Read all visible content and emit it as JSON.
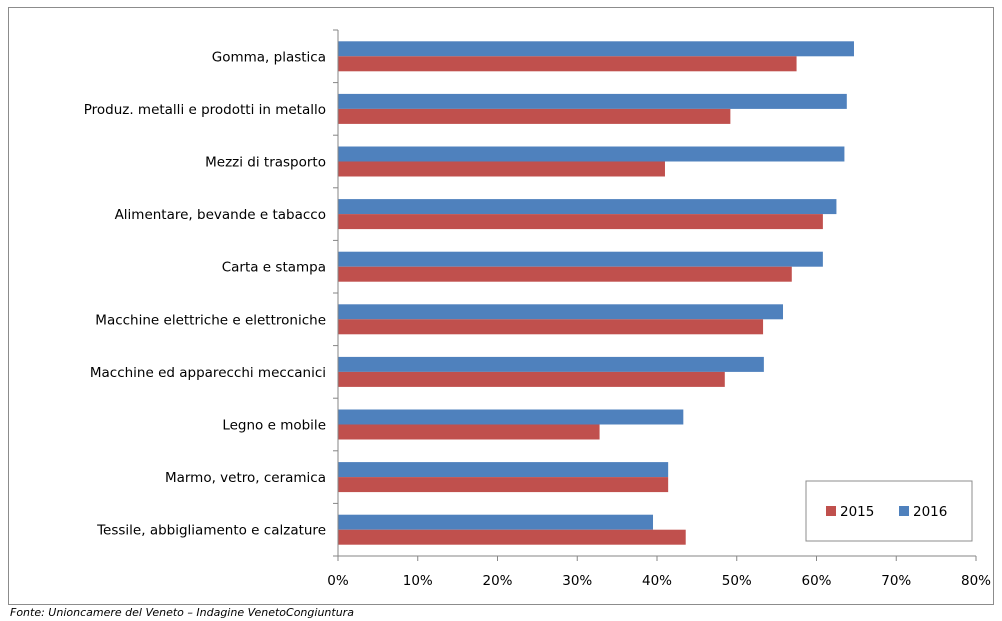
{
  "chart_data": {
    "type": "bar",
    "orientation": "horizontal",
    "categories": [
      "Gomma, plastica",
      "Produz. metalli e prodotti in metallo",
      "Mezzi di trasporto",
      "Alimentare, bevande e tabacco",
      "Carta e stampa",
      "Macchine elettriche e elettroniche",
      "Macchine ed apparecchi meccanici",
      "Legno e mobile",
      "Marmo, vetro, ceramica",
      "Tessile, abbigliamento e calzature"
    ],
    "series": [
      {
        "name": "2015",
        "color": "#c0504d",
        "values": [
          57.5,
          49.2,
          41.0,
          60.8,
          56.9,
          53.3,
          48.5,
          32.8,
          41.4,
          43.6
        ]
      },
      {
        "name": "2016",
        "color": "#4f81bd",
        "values": [
          64.7,
          63.8,
          63.5,
          62.5,
          60.8,
          55.8,
          53.4,
          43.3,
          41.4,
          39.5
        ]
      }
    ],
    "xlim": [
      0,
      80
    ],
    "xticks": [
      "0%",
      "10%",
      "20%",
      "30%",
      "40%",
      "50%",
      "60%",
      "70%",
      "80%"
    ],
    "grid": false,
    "legend_position": "bottom-right"
  },
  "source_note": "Fonte: Unioncamere del Veneto – Indagine VenetoCongiuntura"
}
